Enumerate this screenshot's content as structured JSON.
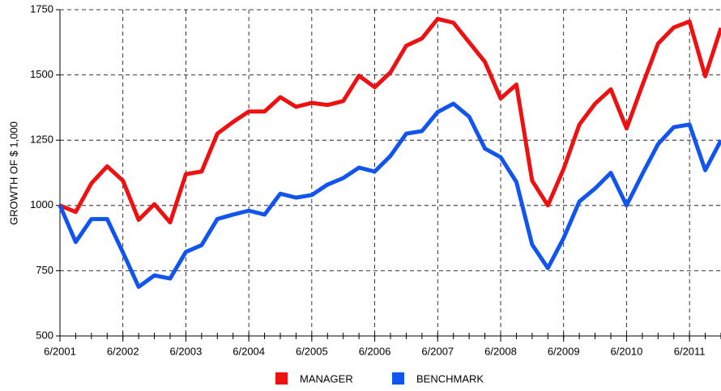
{
  "chart_data": {
    "type": "line",
    "y_label": "GROWTH OF $ 1,000",
    "x": [
      "2001-06",
      "2001-09",
      "2001-12",
      "2002-03",
      "2002-06",
      "2002-09",
      "2002-12",
      "2003-03",
      "2003-06",
      "2003-09",
      "2003-12",
      "2004-03",
      "2004-06",
      "2004-09",
      "2004-12",
      "2005-03",
      "2005-06",
      "2005-09",
      "2005-12",
      "2006-03",
      "2006-06",
      "2006-09",
      "2006-12",
      "2007-03",
      "2007-06",
      "2007-09",
      "2007-12",
      "2008-03",
      "2008-06",
      "2008-09",
      "2008-12",
      "2009-03",
      "2009-06",
      "2009-09",
      "2009-12",
      "2010-03",
      "2010-06",
      "2010-09",
      "2010-12",
      "2011-03",
      "2011-06",
      "2011-09",
      "2011-12"
    ],
    "series": [
      {
        "name": "MANAGER",
        "color": "#ee1111",
        "values": [
          1000,
          975,
          1085,
          1150,
          1095,
          945,
          1005,
          935,
          1120,
          1130,
          1275,
          1320,
          1360,
          1360,
          1415,
          1378,
          1393,
          1385,
          1400,
          1497,
          1453,
          1510,
          1612,
          1640,
          1715,
          1700,
          1625,
          1550,
          1410,
          1463,
          1095,
          1000,
          1140,
          1310,
          1390,
          1445,
          1295,
          1460,
          1620,
          1682,
          1705,
          1495,
          1680
        ]
      },
      {
        "name": "BENCHMARK",
        "color": "#1155ee",
        "values": [
          1000,
          860,
          948,
          948,
          820,
          688,
          732,
          720,
          822,
          848,
          948,
          965,
          980,
          965,
          1045,
          1030,
          1040,
          1080,
          1105,
          1145,
          1130,
          1190,
          1275,
          1285,
          1358,
          1390,
          1340,
          1218,
          1185,
          1090,
          850,
          760,
          875,
          1015,
          1065,
          1125,
          1000,
          1120,
          1235,
          1300,
          1310,
          1135,
          1250
        ]
      }
    ],
    "xlim": [
      "2001-06",
      "2011-12"
    ],
    "xticks": [
      {
        "value": "2001-06",
        "label": "6/2001"
      },
      {
        "value": "2002-06",
        "label": "6/2002"
      },
      {
        "value": "2003-06",
        "label": "6/2003"
      },
      {
        "value": "2004-06",
        "label": "6/2004"
      },
      {
        "value": "2005-06",
        "label": "6/2005"
      },
      {
        "value": "2006-06",
        "label": "6/2006"
      },
      {
        "value": "2007-06",
        "label": "6/2007"
      },
      {
        "value": "2008-06",
        "label": "6/2008"
      },
      {
        "value": "2009-06",
        "label": "6/2009"
      },
      {
        "value": "2010-06",
        "label": "6/2010"
      },
      {
        "value": "2011-06",
        "label": "6/2011"
      }
    ],
    "ylim": [
      500,
      1750
    ],
    "yticks": [
      500,
      750,
      1000,
      1250,
      1500,
      1750
    ],
    "grid": true,
    "legend": "bottom"
  }
}
